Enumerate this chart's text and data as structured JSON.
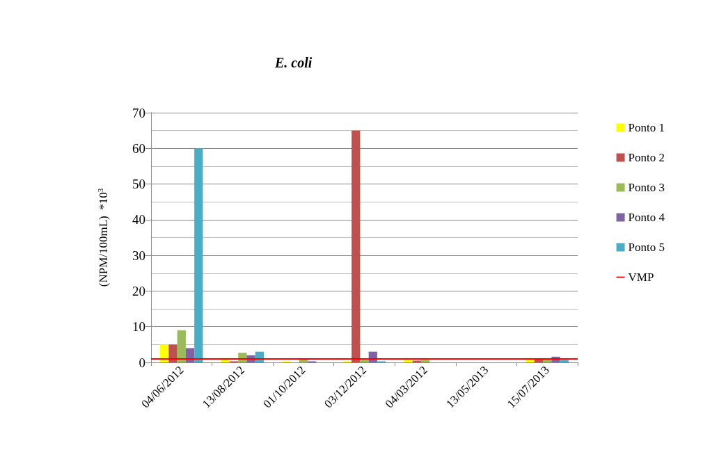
{
  "chart_data": {
    "type": "bar",
    "title": "E. coli",
    "ylabel": "(NPM/100mL)  *10$^{3}$",
    "categories": [
      "04/06/2012",
      "13/08/2012",
      "01/10/2012",
      "03/12/2012",
      "04/03/2012",
      "13/05/2013",
      "15/07/2013"
    ],
    "series": [
      {
        "name": "Ponto 1",
        "color": "#ffff00",
        "values": [
          5,
          1.2,
          0.3,
          0.3,
          0.7,
          0,
          1.2
        ]
      },
      {
        "name": "Ponto 2",
        "color": "#c0504d",
        "values": [
          5,
          0.3,
          0,
          65,
          0.5,
          0,
          0.9
        ]
      },
      {
        "name": "Ponto 3",
        "color": "#9bbb59",
        "values": [
          9,
          2.7,
          0.8,
          0.7,
          0.7,
          0,
          1.2
        ]
      },
      {
        "name": "Ponto 4",
        "color": "#8064a2",
        "values": [
          4,
          2,
          0.3,
          3,
          0,
          0,
          1.6
        ]
      },
      {
        "name": "Ponto 5",
        "color": "#4bacc6",
        "values": [
          60,
          3,
          0,
          0.3,
          0,
          0,
          0.7
        ]
      }
    ],
    "ylim": [
      0,
      70
    ],
    "yticks": [
      0,
      10,
      20,
      30,
      40,
      50,
      60,
      70
    ],
    "grid": "y",
    "legend": "right",
    "ref_lines": [
      {
        "axis": "y",
        "value": 1,
        "label": "VMP",
        "color": "#ff0000"
      }
    ]
  }
}
